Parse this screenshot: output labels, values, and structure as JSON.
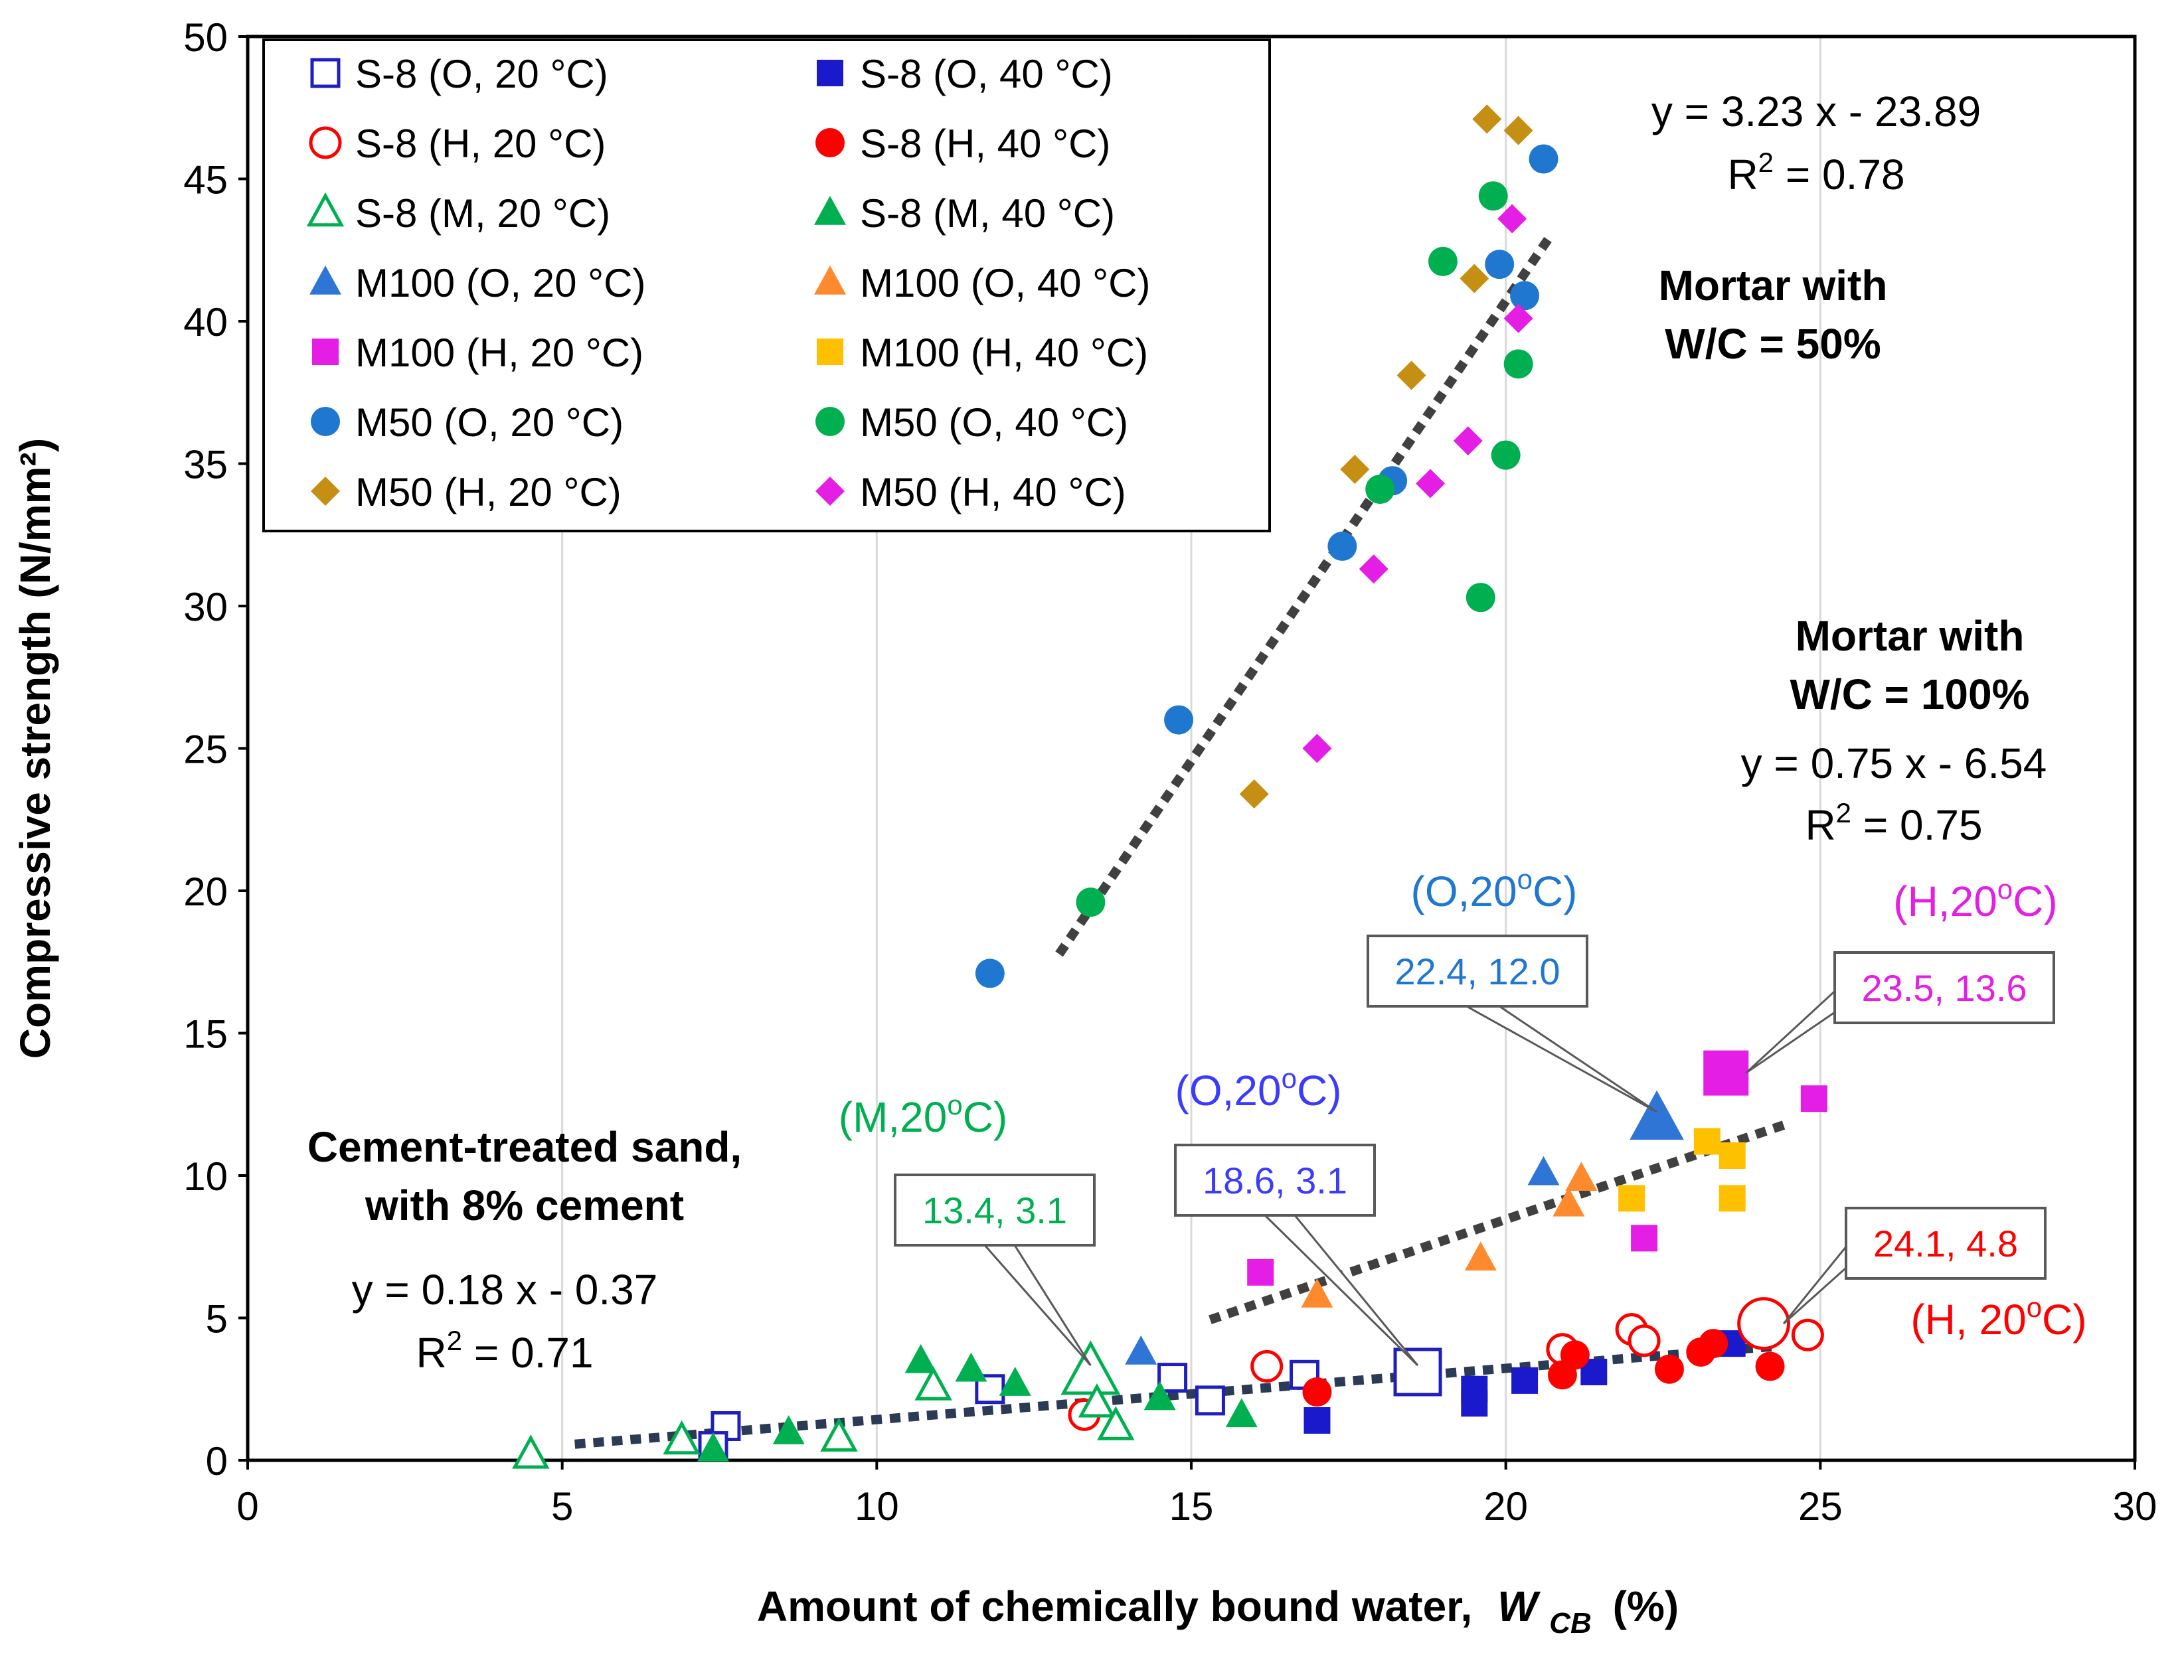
{
  "chart_data": {
    "type": "scatter",
    "xlabel": "Amount of chemically bound water,",
    "xlabel_var": "W",
    "xlabel_sub": "CB",
    "xlabel_unit": "(%)",
    "ylabel": "Compressive strength (N/mm²)",
    "xlim": [
      0,
      30
    ],
    "ylim": [
      0,
      50
    ],
    "x_ticks": [
      0,
      5,
      10,
      15,
      20,
      25,
      30
    ],
    "y_ticks": [
      0,
      5,
      10,
      15,
      20,
      25,
      30,
      35,
      40,
      45,
      50
    ],
    "grid": "vertical",
    "legend_position": "top-left",
    "series": [
      {
        "name": "S-8 (O, 20 °C)",
        "marker": "square",
        "filled": false,
        "color": "#1f1fbf",
        "points": [
          [
            7.6,
            1.2
          ],
          [
            7.4,
            0.5
          ],
          [
            11.8,
            2.5
          ],
          [
            14.7,
            2.9
          ],
          [
            15.3,
            2.1
          ],
          [
            16.8,
            3.0
          ],
          [
            18.6,
            3.1
          ]
        ]
      },
      {
        "name": "S-8 (O, 40 °C)",
        "marker": "square",
        "filled": true,
        "color": "#1a1acc",
        "points": [
          [
            17.0,
            1.4
          ],
          [
            19.5,
            2.5
          ],
          [
            19.5,
            2.0
          ],
          [
            20.3,
            2.8
          ],
          [
            21.4,
            3.1
          ],
          [
            23.6,
            4.1
          ]
        ]
      },
      {
        "name": "S-8 (H, 20 °C)",
        "marker": "circle",
        "filled": false,
        "color": "#ff0000",
        "points": [
          [
            13.3,
            1.6
          ],
          [
            16.2,
            3.3
          ],
          [
            20.9,
            3.9
          ],
          [
            22.0,
            4.6
          ],
          [
            22.2,
            4.2
          ],
          [
            24.1,
            4.8
          ],
          [
            24.8,
            4.4
          ]
        ]
      },
      {
        "name": "S-8 (H, 40 °C)",
        "marker": "circle",
        "filled": true,
        "color": "#ff0000",
        "points": [
          [
            17.0,
            2.4
          ],
          [
            20.9,
            3.0
          ],
          [
            21.1,
            3.7
          ],
          [
            22.6,
            3.2
          ],
          [
            23.1,
            3.8
          ],
          [
            23.3,
            4.1
          ],
          [
            24.2,
            3.3
          ]
        ]
      },
      {
        "name": "S-8 (M, 20 °C)",
        "marker": "triangle",
        "filled": false,
        "color": "#00b050",
        "points": [
          [
            4.5,
            0.2
          ],
          [
            6.9,
            0.7
          ],
          [
            9.4,
            0.8
          ],
          [
            10.9,
            2.6
          ],
          [
            13.4,
            3.1
          ],
          [
            13.5,
            2.0
          ],
          [
            13.8,
            1.2
          ]
        ]
      },
      {
        "name": "S-8 (M, 40 °C)",
        "marker": "triangle",
        "filled": true,
        "color": "#00b050",
        "points": [
          [
            7.4,
            0.4
          ],
          [
            8.6,
            1.0
          ],
          [
            10.7,
            3.5
          ],
          [
            11.5,
            3.2
          ],
          [
            12.2,
            2.7
          ],
          [
            14.5,
            2.2
          ],
          [
            15.8,
            1.6
          ]
        ]
      },
      {
        "name": "M100 (O, 20 °C)",
        "marker": "triangle",
        "filled": true,
        "color": "#2e75d6",
        "points": [
          [
            14.2,
            3.8
          ],
          [
            20.6,
            10.1
          ],
          [
            22.4,
            12.0
          ]
        ]
      },
      {
        "name": "M100 (O, 40 °C)",
        "marker": "triangle",
        "filled": true,
        "color": "#ff8a2e",
        "points": [
          [
            17.0,
            5.8
          ],
          [
            19.6,
            7.1
          ],
          [
            21.0,
            9.0
          ],
          [
            21.2,
            9.9
          ]
        ]
      },
      {
        "name": "M100 (H, 20 °C)",
        "marker": "square",
        "filled": true,
        "color": "#e41ee4",
        "points": [
          [
            16.1,
            6.6
          ],
          [
            22.2,
            7.8
          ],
          [
            23.5,
            13.6
          ],
          [
            24.9,
            12.7
          ]
        ]
      },
      {
        "name": "M100 (H, 40 °C)",
        "marker": "square",
        "filled": true,
        "color": "#ffc000",
        "points": [
          [
            22.0,
            9.2
          ],
          [
            23.2,
            11.2
          ],
          [
            23.6,
            10.7
          ],
          [
            23.6,
            9.2
          ]
        ]
      },
      {
        "name": "M50 (O, 20 °C)",
        "marker": "circle",
        "filled": true,
        "color": "#1f77d0",
        "points": [
          [
            11.8,
            17.1
          ],
          [
            14.8,
            26.0
          ],
          [
            17.4,
            32.1
          ],
          [
            18.2,
            34.4
          ],
          [
            19.9,
            42.0
          ],
          [
            20.3,
            40.9
          ],
          [
            20.6,
            45.7
          ]
        ]
      },
      {
        "name": "M50 (O, 40 °C)",
        "marker": "circle",
        "filled": true,
        "color": "#00b050",
        "points": [
          [
            13.4,
            19.6
          ],
          [
            18.0,
            34.1
          ],
          [
            19.0,
            42.1
          ],
          [
            19.6,
            30.3
          ],
          [
            19.8,
            44.4
          ],
          [
            20.0,
            35.3
          ],
          [
            20.2,
            38.5
          ]
        ]
      },
      {
        "name": "M50 (H, 20 °C)",
        "marker": "diamond",
        "filled": true,
        "color": "#c48f12",
        "points": [
          [
            16.0,
            23.4
          ],
          [
            17.6,
            34.8
          ],
          [
            18.5,
            38.1
          ],
          [
            19.5,
            41.5
          ],
          [
            19.7,
            47.1
          ],
          [
            20.2,
            46.7
          ]
        ]
      },
      {
        "name": "M50 (H, 40 °C)",
        "marker": "diamond",
        "filled": true,
        "color": "#e41ee4",
        "points": [
          [
            17.0,
            25.0
          ],
          [
            17.9,
            31.3
          ],
          [
            18.8,
            34.3
          ],
          [
            19.4,
            35.8
          ],
          [
            20.1,
            43.6
          ],
          [
            20.2,
            40.1
          ]
        ]
      }
    ],
    "trendlines": [
      {
        "name": "Mortar with W/C = 50%",
        "x_range": [
          12.9,
          20.7
        ],
        "slope": 3.23,
        "intercept": -23.89
      },
      {
        "name": "Mortar with W/C = 100%",
        "x_range": [
          15.3,
          24.5
        ],
        "slope": 0.75,
        "intercept": -6.54
      },
      {
        "name": "Cement-treated sand, with 8% cement",
        "x_range": [
          5.2,
          24.3
        ],
        "slope": 0.18,
        "intercept": -0.37
      }
    ],
    "annotations": {
      "mortar50_title1": "Mortar with",
      "mortar50_title2": "W/C = 50%",
      "mortar50_eq": "y = 3.23 x - 23.89",
      "mortar50_r2_label": "R",
      "mortar50_r2_sup": "2",
      "mortar50_r2_value": " = 0.78",
      "mortar100_title1": "Mortar with",
      "mortar100_title2": "W/C = 100%",
      "mortar100_eq": "y = 0.75 x - 6.54",
      "mortar100_r2_label": "R",
      "mortar100_r2_sup": "2",
      "mortar100_r2_value": " = 0.75",
      "sand_title1": "Cement-treated sand,",
      "sand_title2": "with 8% cement",
      "sand_eq": "y = 0.18 x - 0.37",
      "sand_r2_label": "R",
      "sand_r2_sup": "2",
      "sand_r2_value": " = 0.71",
      "cond_o_mortar": {
        "prefix": "(O,20",
        "sup": "o",
        "suffix": "C)",
        "color": "#1f77d0"
      },
      "cond_h_mortar": {
        "prefix": "(H,20",
        "sup": "o",
        "suffix": "C)",
        "color": "#e41ee4"
      },
      "cond_o_sand": {
        "prefix": "(O,20",
        "sup": "o",
        "suffix": "C)",
        "color": "#3b3bff"
      },
      "cond_m_sand": {
        "prefix": "(M,20",
        "sup": "o",
        "suffix": "C)",
        "color": "#00b050"
      },
      "cond_h_sand": {
        "prefix": "(H, 20",
        "sup": "o",
        "suffix": "C)",
        "color": "#ff0000"
      }
    },
    "callouts": [
      {
        "label": "22.4, 12.0",
        "color": "#1f77d0",
        "x": 22.4,
        "y": 12.0
      },
      {
        "label": "23.5, 13.6",
        "color": "#e41ee4",
        "x": 23.5,
        "y": 13.6
      },
      {
        "label": "18.6, 3.1",
        "color": "#3b3bff",
        "x": 18.6,
        "y": 3.1
      },
      {
        "label": "13.4, 3.1",
        "color": "#00b050",
        "x": 13.4,
        "y": 3.1
      },
      {
        "label": "24.1, 4.8",
        "color": "#ff0000",
        "x": 24.1,
        "y": 4.8
      }
    ]
  }
}
